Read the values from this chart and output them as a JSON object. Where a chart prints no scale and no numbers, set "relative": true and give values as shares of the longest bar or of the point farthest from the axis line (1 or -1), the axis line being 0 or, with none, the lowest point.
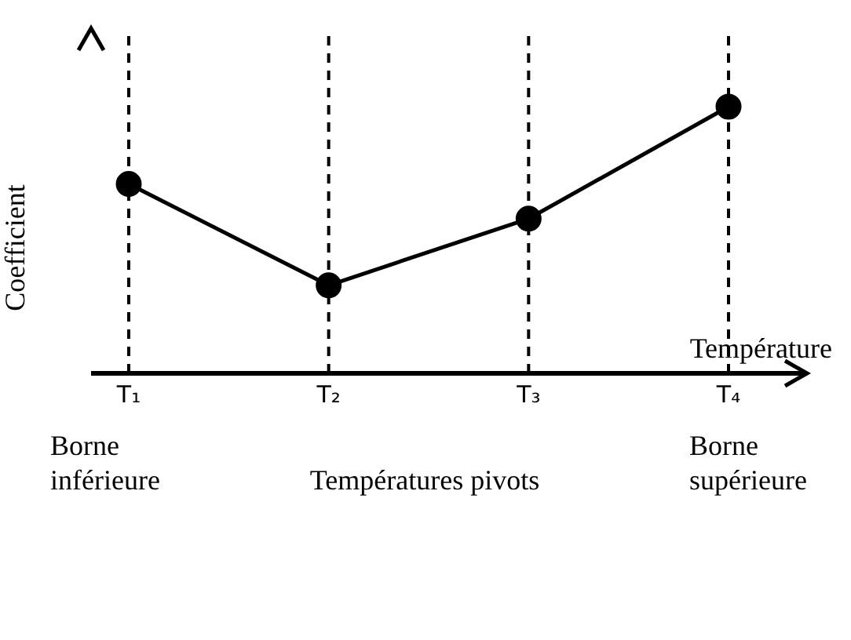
{
  "chart_data": {
    "type": "line",
    "relative": true,
    "xlabel": "Température",
    "ylabel": "Coefficient",
    "categories": [
      "T₁",
      "T₂",
      "T₃",
      "T₄"
    ],
    "series": [
      {
        "color": "#000000",
        "values": [
          0.71,
          0.33,
          0.58,
          1
        ]
      }
    ],
    "marker": "circle",
    "line_style": "solid",
    "grid": false,
    "legend": false,
    "ref_lines": [
      {
        "axis": "x",
        "value": "T₁",
        "line_style": "dashed",
        "color": "#000000"
      },
      {
        "axis": "x",
        "value": "T₂",
        "line_style": "dashed",
        "color": "#000000"
      },
      {
        "axis": "x",
        "value": "T₃",
        "line_style": "dashed",
        "color": "#000000"
      },
      {
        "axis": "x",
        "value": "T₄",
        "line_style": "dashed",
        "color": "#000000"
      }
    ],
    "annotations": [
      "Borne\ninférieure",
      "Températures pivots",
      "Borne\nsupérieure"
    ]
  }
}
